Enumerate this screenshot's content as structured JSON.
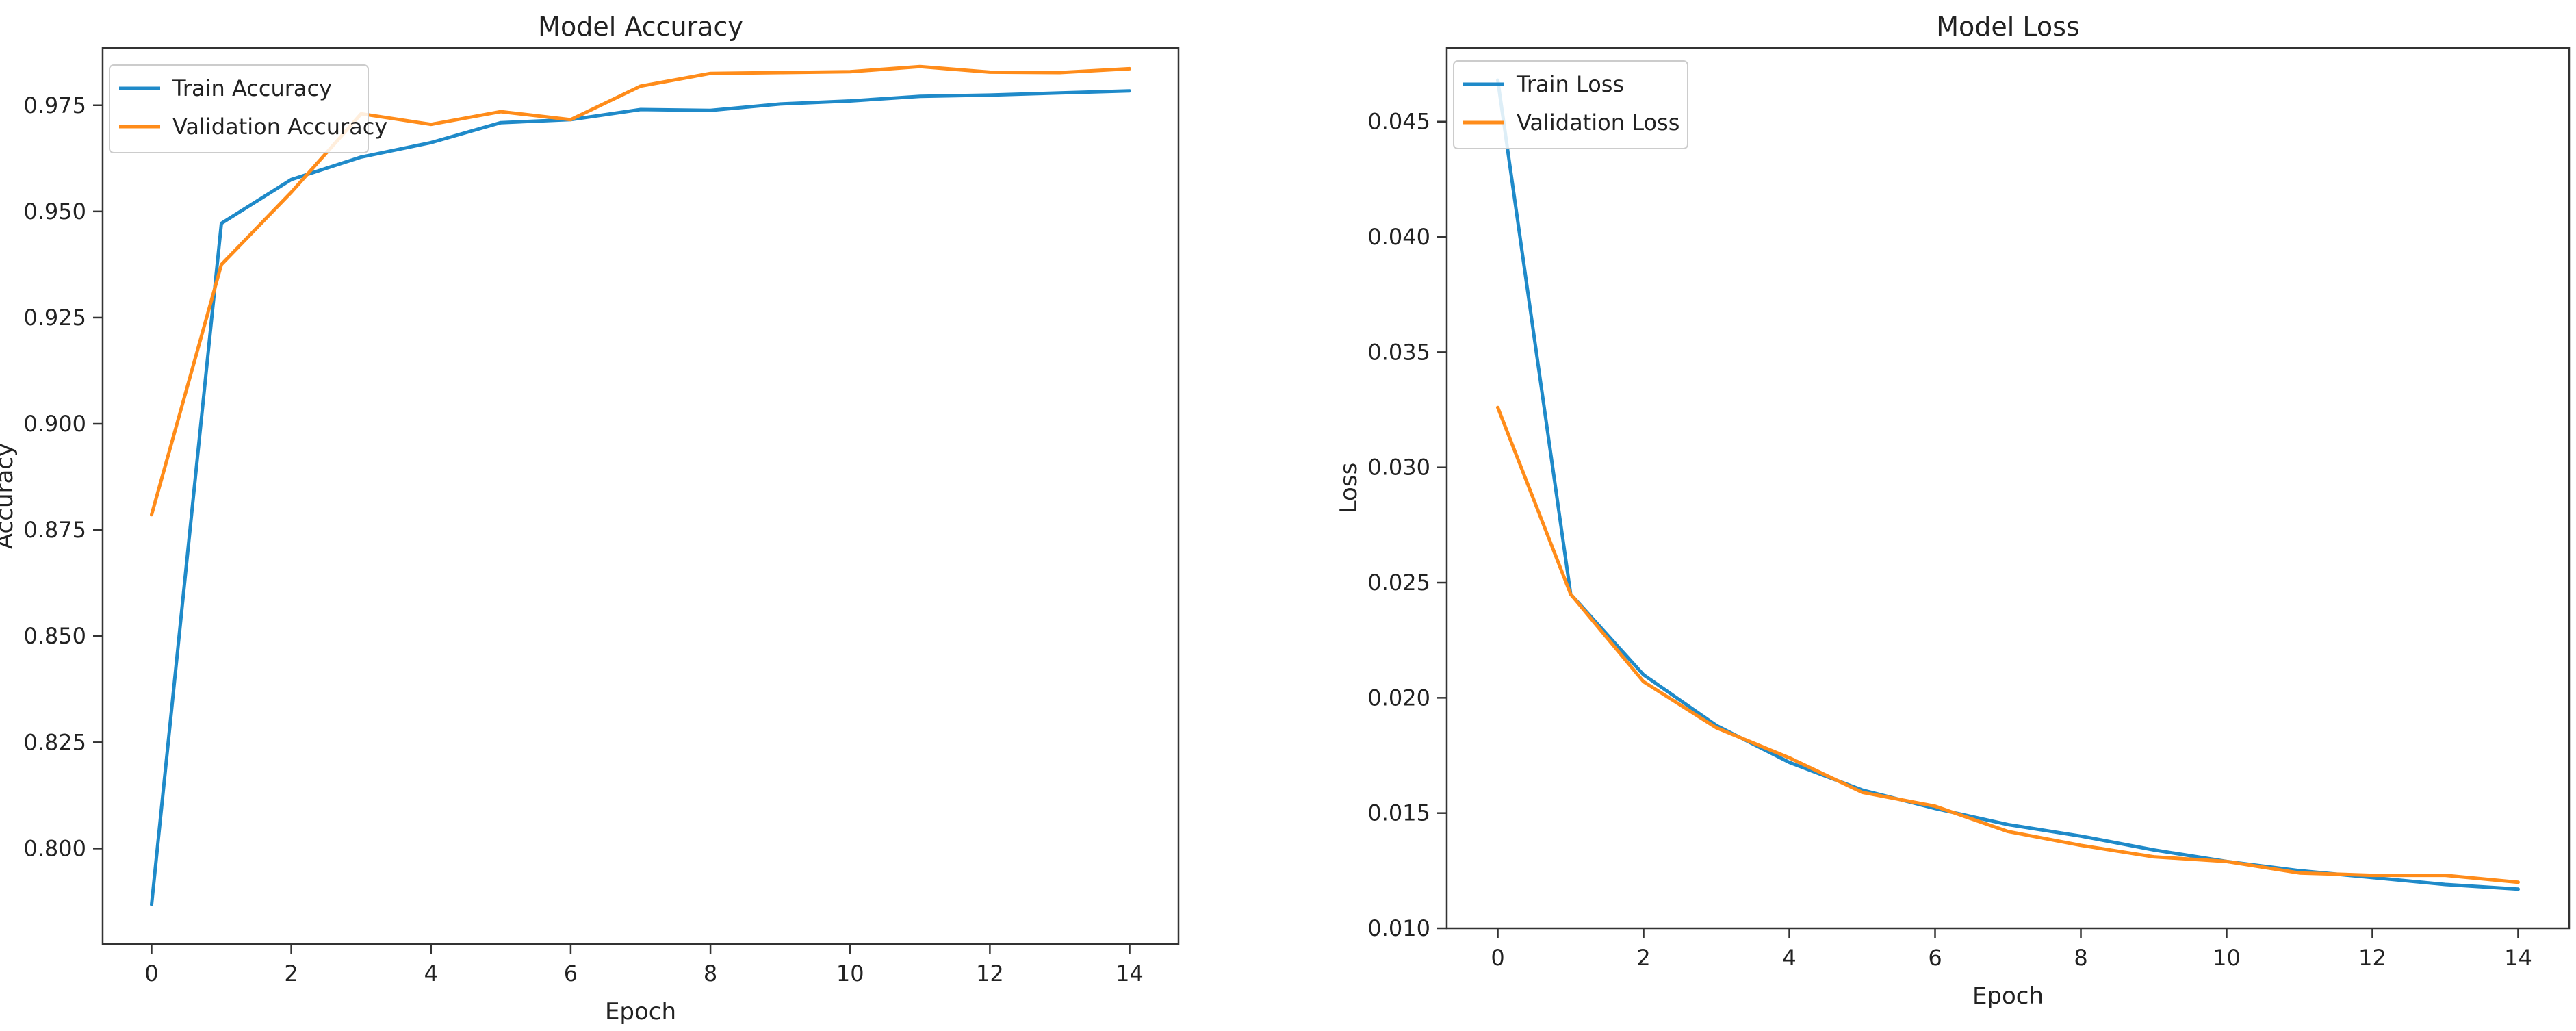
{
  "chart_data": [
    {
      "type": "line",
      "title": "Model Accuracy",
      "xlabel": "Epoch",
      "ylabel": "Accuracy",
      "x": [
        0,
        1,
        2,
        3,
        4,
        5,
        6,
        7,
        8,
        9,
        10,
        11,
        12,
        13,
        14
      ],
      "xlim": [
        -0.7,
        14.7
      ],
      "ylim": [
        0.7775,
        0.9885
      ],
      "xticks": [
        0,
        2,
        4,
        6,
        8,
        10,
        12,
        14
      ],
      "xtick_labels": [
        "0",
        "2",
        "4",
        "6",
        "8",
        "10",
        "12",
        "14"
      ],
      "yticks": [
        0.8,
        0.825,
        0.85,
        0.875,
        0.9,
        0.925,
        0.95,
        0.975
      ],
      "ytick_labels": [
        "0.800",
        "0.825",
        "0.850",
        "0.875",
        "0.900",
        "0.925",
        "0.950",
        "0.975"
      ],
      "grid": false,
      "legend_position": "top-left",
      "series": [
        {
          "name": "Train Accuracy",
          "color": "#1f8ac9",
          "values": [
            0.7868,
            0.9472,
            0.9575,
            0.9628,
            0.9662,
            0.9709,
            0.9716,
            0.974,
            0.9738,
            0.9753,
            0.976,
            0.9771,
            0.9774,
            0.9779,
            0.9784
          ]
        },
        {
          "name": "Validation Accuracy",
          "color": "#ff8c1a",
          "values": [
            0.8786,
            0.9375,
            0.9545,
            0.973,
            0.9705,
            0.9735,
            0.9716,
            0.9795,
            0.9825,
            0.9827,
            0.9829,
            0.9841,
            0.9828,
            0.9827,
            0.9836
          ]
        }
      ]
    },
    {
      "type": "line",
      "title": "Model Loss",
      "xlabel": "Epoch",
      "ylabel": "Loss",
      "x": [
        0,
        1,
        2,
        3,
        4,
        5,
        6,
        7,
        8,
        9,
        10,
        11,
        12,
        13,
        14
      ],
      "xlim": [
        -0.7,
        14.7
      ],
      "ylim": [
        0.01,
        0.0482
      ],
      "xticks": [
        0,
        2,
        4,
        6,
        8,
        10,
        12,
        14
      ],
      "xtick_labels": [
        "0",
        "2",
        "4",
        "6",
        "8",
        "10",
        "12",
        "14"
      ],
      "yticks": [
        0.01,
        0.015,
        0.02,
        0.025,
        0.03,
        0.035,
        0.04,
        0.045
      ],
      "ytick_labels": [
        "0.010",
        "0.015",
        "0.020",
        "0.025",
        "0.030",
        "0.035",
        "0.040",
        "0.045"
      ],
      "grid": false,
      "legend_position": "top-left",
      "series": [
        {
          "name": "Train Loss",
          "color": "#1f8ac9",
          "values": [
            0.0468,
            0.0245,
            0.021,
            0.0188,
            0.0172,
            0.016,
            0.0152,
            0.0145,
            0.014,
            0.0134,
            0.0129,
            0.0125,
            0.0122,
            0.0119,
            0.0117
          ]
        },
        {
          "name": "Validation Loss",
          "color": "#ff8c1a",
          "values": [
            0.0326,
            0.0245,
            0.0207,
            0.0187,
            0.0174,
            0.0159,
            0.0153,
            0.0142,
            0.0136,
            0.0131,
            0.0129,
            0.0124,
            0.0123,
            0.0123,
            0.012
          ]
        }
      ]
    }
  ]
}
